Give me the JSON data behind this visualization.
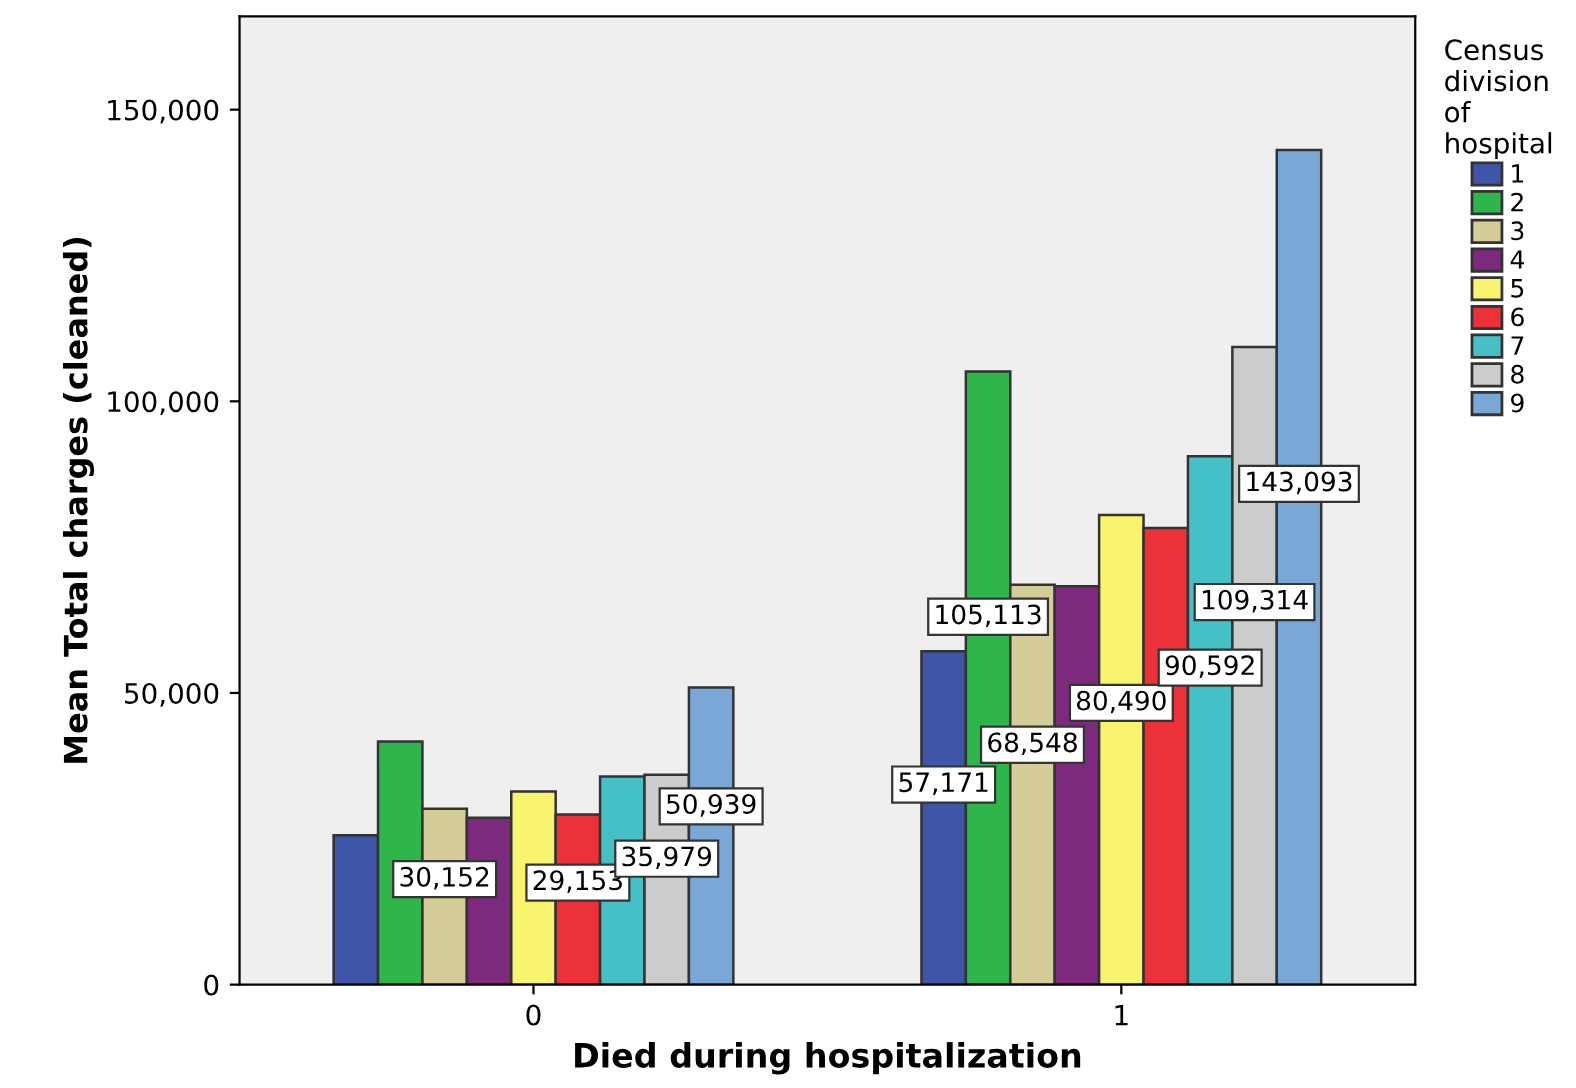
{
  "chart_data": {
    "type": "bar",
    "xlabel": "Died during hospitalization",
    "ylabel": "Mean Total charges (cleaned)",
    "legend_title": "Census division of hospital",
    "categories": [
      "0",
      "1"
    ],
    "series": [
      {
        "name": "1",
        "color": "#3e55a8",
        "values": [
          25600,
          57171
        ],
        "value_labels": [
          null,
          "57,171"
        ]
      },
      {
        "name": "2",
        "color": "#2fb64a",
        "values": [
          41700,
          105113
        ],
        "value_labels": [
          null,
          "105,113"
        ]
      },
      {
        "name": "3",
        "color": "#d4cd97",
        "values": [
          30152,
          68548
        ],
        "value_labels": [
          "30,152",
          "68,548"
        ]
      },
      {
        "name": "4",
        "color": "#7b2a7e",
        "values": [
          28600,
          68300
        ],
        "value_labels": [
          null,
          null
        ]
      },
      {
        "name": "5",
        "color": "#f8f46e",
        "values": [
          33100,
          80490
        ],
        "value_labels": [
          null,
          "80,490"
        ]
      },
      {
        "name": "6",
        "color": "#ec3238",
        "values": [
          29153,
          78300
        ],
        "value_labels": [
          "29,153",
          null
        ]
      },
      {
        "name": "7",
        "color": "#45c0c6",
        "values": [
          35700,
          90592
        ],
        "value_labels": [
          null,
          "90,592"
        ]
      },
      {
        "name": "8",
        "color": "#cccccc",
        "values": [
          35979,
          109314
        ],
        "value_labels": [
          "35,979",
          "109,314"
        ]
      },
      {
        "name": "9",
        "color": "#79a8d6",
        "values": [
          50939,
          143093
        ],
        "value_labels": [
          "50,939",
          "143,093"
        ]
      }
    ],
    "ylim": [
      0,
      166000
    ],
    "yticks": [
      {
        "value": 0,
        "label": "0"
      },
      {
        "value": 50000,
        "label": "50,000"
      },
      {
        "value": 100000,
        "label": "100,000"
      },
      {
        "value": 150000,
        "label": "150,000"
      }
    ],
    "grid": false,
    "legend": "right"
  }
}
